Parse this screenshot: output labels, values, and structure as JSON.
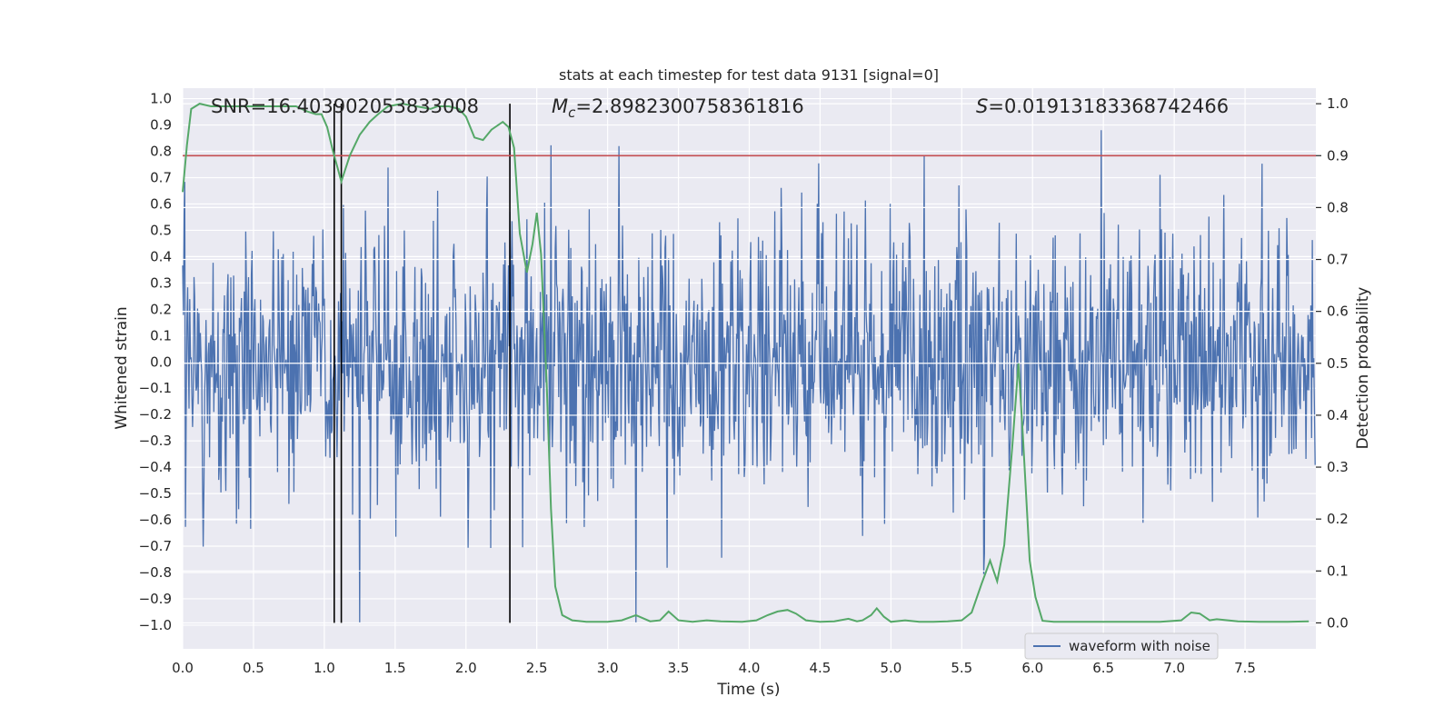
{
  "chart_data": {
    "type": "line",
    "title": "stats at each timestep for test data 9131 [signal=0]",
    "xlabel": "Time (s)",
    "ylabel_left": "Whitened strain",
    "ylabel_right": "Detection probability",
    "xlim": [
      0.0,
      8.0
    ],
    "ylim_left": [
      -1.09,
      1.04
    ],
    "ylim_right": [
      -0.05,
      1.03
    ],
    "xticks": [
      "0.0",
      "0.5",
      "1.0",
      "1.5",
      "2.0",
      "2.5",
      "3.0",
      "3.5",
      "4.0",
      "4.5",
      "5.0",
      "5.5",
      "6.0",
      "6.5",
      "7.0",
      "7.5"
    ],
    "xtick_values": [
      0.0,
      0.5,
      1.0,
      1.5,
      2.0,
      2.5,
      3.0,
      3.5,
      4.0,
      4.5,
      5.0,
      5.5,
      6.0,
      6.5,
      7.0,
      7.5
    ],
    "yticks_left": [
      "1.0",
      "0.9",
      "0.8",
      "0.7",
      "0.6",
      "0.5",
      "0.4",
      "0.3",
      "0.2",
      "0.1",
      "0.0",
      "−0.1",
      "−0.2",
      "−0.3",
      "−0.4",
      "−0.5",
      "−0.6",
      "−0.7",
      "−0.8",
      "−0.9",
      "−1.0"
    ],
    "ytick_values_left": [
      1.0,
      0.9,
      0.8,
      0.7,
      0.6,
      0.5,
      0.4,
      0.3,
      0.2,
      0.1,
      0.0,
      -0.1,
      -0.2,
      -0.3,
      -0.4,
      -0.5,
      -0.6,
      -0.7,
      -0.8,
      -0.9,
      -1.0
    ],
    "yticks_right": [
      "1.0",
      "0.9",
      "0.8",
      "0.7",
      "0.6",
      "0.5",
      "0.4",
      "0.3",
      "0.2",
      "0.1",
      "0.0"
    ],
    "ytick_values_right": [
      1.0,
      0.9,
      0.8,
      0.7,
      0.6,
      0.5,
      0.4,
      0.3,
      0.2,
      0.1,
      0.0
    ],
    "annotations": {
      "snr": "SNR=16.403902053833008",
      "mc_symbol": "M",
      "mc_sub": "c",
      "mc_value": "=2.8982300758361816",
      "s_symbol": "S",
      "s_value": "=0.019131833687424 66"
    },
    "legend": [
      "waveform with noise"
    ],
    "threshold": 0.9,
    "vertical_lines_x": [
      1.07,
      1.12,
      2.31
    ],
    "waveform": {
      "name": "waveform with noise",
      "color": "#4c72b0",
      "duration_s": 8.0,
      "samples": 1600,
      "approx_range": [
        -1.0,
        0.9
      ]
    },
    "series": [
      {
        "name": "Detection probability",
        "color": "#55a868",
        "x": [
          0.0,
          0.03,
          0.06,
          0.12,
          0.2,
          0.3,
          0.4,
          0.5,
          0.6,
          0.7,
          0.8,
          0.88,
          0.94,
          0.98,
          1.02,
          1.06,
          1.1,
          1.12,
          1.18,
          1.25,
          1.32,
          1.38,
          1.45,
          1.55,
          1.65,
          1.75,
          1.8,
          1.88,
          1.95,
          2.0,
          2.06,
          2.12,
          2.18,
          2.26,
          2.3,
          2.34,
          2.38,
          2.43,
          2.47,
          2.5,
          2.53,
          2.57,
          2.6,
          2.63,
          2.68,
          2.75,
          2.85,
          3.0,
          3.1,
          3.2,
          3.3,
          3.37,
          3.43,
          3.5,
          3.6,
          3.7,
          3.8,
          3.95,
          4.05,
          4.13,
          4.2,
          4.27,
          4.33,
          4.4,
          4.5,
          4.6,
          4.7,
          4.76,
          4.8,
          4.86,
          4.9,
          4.95,
          5.0,
          5.1,
          5.2,
          5.3,
          5.4,
          5.5,
          5.57,
          5.64,
          5.7,
          5.75,
          5.8,
          5.86,
          5.9,
          5.93,
          5.98,
          6.02,
          6.07,
          6.15,
          6.3,
          6.5,
          6.7,
          6.9,
          7.05,
          7.12,
          7.18,
          7.25,
          7.3,
          7.45,
          7.6,
          7.8,
          7.95
        ],
        "values": [
          0.83,
          0.92,
          0.99,
          1.0,
          0.995,
          0.995,
          0.995,
          0.995,
          0.995,
          0.995,
          0.995,
          0.985,
          0.98,
          0.98,
          0.955,
          0.91,
          0.87,
          0.85,
          0.9,
          0.94,
          0.965,
          0.98,
          0.995,
          1.0,
          0.995,
          0.99,
          0.995,
          0.995,
          0.99,
          0.975,
          0.935,
          0.93,
          0.95,
          0.965,
          0.955,
          0.915,
          0.75,
          0.675,
          0.73,
          0.79,
          0.71,
          0.46,
          0.22,
          0.07,
          0.015,
          0.005,
          0.002,
          0.002,
          0.005,
          0.015,
          0.003,
          0.005,
          0.022,
          0.005,
          0.002,
          0.005,
          0.003,
          0.002,
          0.005,
          0.015,
          0.022,
          0.025,
          0.018,
          0.005,
          0.002,
          0.003,
          0.008,
          0.003,
          0.005,
          0.015,
          0.028,
          0.012,
          0.002,
          0.005,
          0.002,
          0.002,
          0.003,
          0.005,
          0.02,
          0.075,
          0.12,
          0.08,
          0.15,
          0.35,
          0.5,
          0.37,
          0.12,
          0.05,
          0.004,
          0.002,
          0.002,
          0.002,
          0.002,
          0.002,
          0.005,
          0.02,
          0.018,
          0.005,
          0.007,
          0.003,
          0.002,
          0.002,
          0.003
        ]
      }
    ]
  }
}
